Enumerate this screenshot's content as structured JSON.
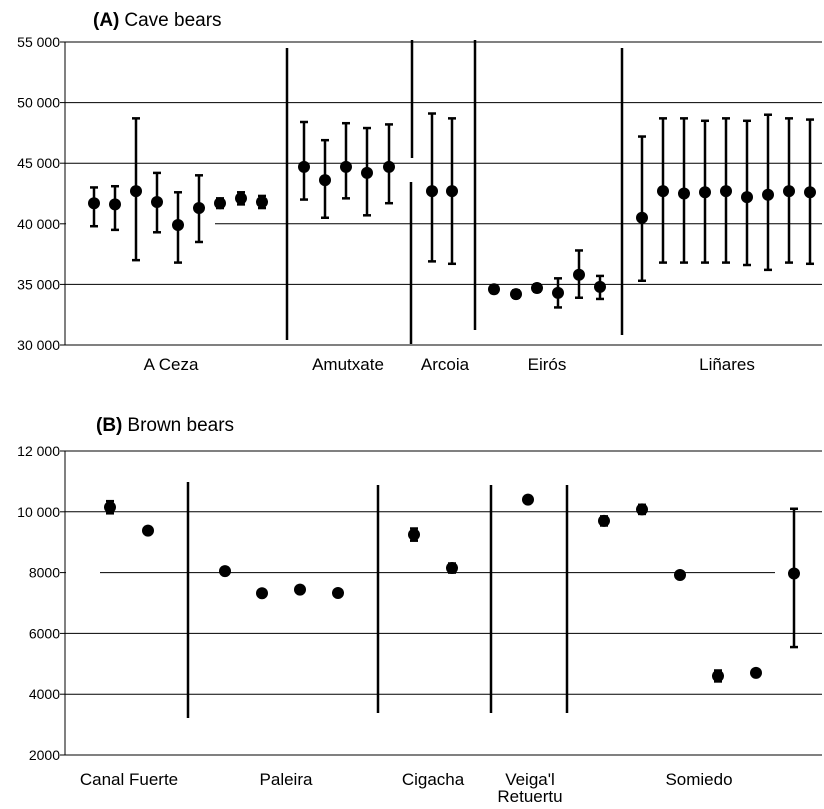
{
  "chart_data": [
    {
      "type": "scatter",
      "panel_label": "(A)",
      "title": "Cave bears",
      "ylim": [
        30000,
        55000
      ],
      "yticks": [
        30000,
        35000,
        40000,
        45000,
        50000,
        55000
      ],
      "ytick_labels": [
        "30 000",
        "35 000",
        "40 000",
        "45 000",
        "50 000",
        "55 000"
      ],
      "grid": true,
      "groups": [
        {
          "name": "A Ceza",
          "points": [
            {
              "y": 41700,
              "lo": 39800,
              "hi": 43000
            },
            {
              "y": 41600,
              "lo": 39500,
              "hi": 43100
            },
            {
              "y": 42700,
              "lo": 37000,
              "hi": 48700
            },
            {
              "y": 41800,
              "lo": 39300,
              "hi": 44200
            },
            {
              "y": 39900,
              "lo": 36800,
              "hi": 42600
            },
            {
              "y": 41300,
              "lo": 38500,
              "hi": 44000
            },
            {
              "y": 41700,
              "lo": 41300,
              "hi": 42100
            },
            {
              "y": 42100,
              "lo": 41600,
              "hi": 42600
            },
            {
              "y": 41800,
              "lo": 41300,
              "hi": 42300
            }
          ]
        },
        {
          "name": "Amutxate",
          "points": [
            {
              "y": 44700,
              "lo": 42000,
              "hi": 48400
            },
            {
              "y": 43600,
              "lo": 40500,
              "hi": 46900
            },
            {
              "y": 44700,
              "lo": 42100,
              "hi": 48300
            },
            {
              "y": 44200,
              "lo": 40700,
              "hi": 47900
            },
            {
              "y": 44700,
              "lo": 41700,
              "hi": 48200
            }
          ]
        },
        {
          "name": "Arcoia",
          "points": [
            {
              "y": 42700,
              "lo": 36900,
              "hi": 49100
            },
            {
              "y": 42700,
              "lo": 36700,
              "hi": 48700
            }
          ]
        },
        {
          "name": "Eirós",
          "points": [
            {
              "y": 34600,
              "lo": 34300,
              "hi": 34900
            },
            {
              "y": 34200,
              "lo": 33900,
              "hi": 34500
            },
            {
              "y": 34700,
              "lo": 34400,
              "hi": 35000
            },
            {
              "y": 34300,
              "lo": 33100,
              "hi": 35500
            },
            {
              "y": 35800,
              "lo": 33900,
              "hi": 37800
            },
            {
              "y": 34800,
              "lo": 33800,
              "hi": 35700
            }
          ]
        },
        {
          "name": "Liñares",
          "points": [
            {
              "y": 40500,
              "lo": 35300,
              "hi": 47200
            },
            {
              "y": 42700,
              "lo": 36800,
              "hi": 48700
            },
            {
              "y": 42500,
              "lo": 36800,
              "hi": 48700
            },
            {
              "y": 42600,
              "lo": 36800,
              "hi": 48500
            },
            {
              "y": 42700,
              "lo": 36800,
              "hi": 48700
            },
            {
              "y": 42200,
              "lo": 36600,
              "hi": 48500
            },
            {
              "y": 42400,
              "lo": 36200,
              "hi": 49000
            },
            {
              "y": 42700,
              "lo": 36800,
              "hi": 48700
            },
            {
              "y": 42600,
              "lo": 36700,
              "hi": 48600
            }
          ]
        }
      ]
    },
    {
      "type": "scatter",
      "panel_label": "(B)",
      "title": "Brown bears",
      "ylim": [
        2000,
        12000
      ],
      "yticks": [
        2000,
        4000,
        6000,
        8000,
        10000,
        12000
      ],
      "ytick_labels": [
        "2000",
        "4000",
        "6000",
        "8000",
        "10 000",
        "12 000"
      ],
      "grid": true,
      "groups": [
        {
          "name": "Canal Fuerte",
          "points": [
            {
              "y": 10150,
              "lo": 9950,
              "hi": 10350
            },
            {
              "y": 9380,
              "lo": 9330,
              "hi": 9430
            }
          ]
        },
        {
          "name": "Paleira",
          "points": [
            {
              "y": 8050,
              "lo": 8000,
              "hi": 8100
            },
            {
              "y": 7320,
              "lo": 7270,
              "hi": 7370
            },
            {
              "y": 7440,
              "lo": 7390,
              "hi": 7490
            },
            {
              "y": 7330,
              "lo": 7280,
              "hi": 7380
            }
          ]
        },
        {
          "name": "Cigacha",
          "points": [
            {
              "y": 9250,
              "lo": 9050,
              "hi": 9450
            },
            {
              "y": 8150,
              "lo": 8000,
              "hi": 8300
            }
          ]
        },
        {
          "name": "Veiga'l Retuertu",
          "points": [
            {
              "y": 10400,
              "lo": 10350,
              "hi": 10450
            }
          ]
        },
        {
          "name": "Somiedo",
          "points": [
            {
              "y": 9700,
              "lo": 9550,
              "hi": 9850
            },
            {
              "y": 10080,
              "lo": 9930,
              "hi": 10230
            },
            {
              "y": 7920,
              "lo": 7870,
              "hi": 7970
            },
            {
              "y": 4600,
              "lo": 4420,
              "hi": 4780
            },
            {
              "y": 4700,
              "lo": 4620,
              "hi": 4780
            },
            {
              "y": 7970,
              "lo": 5550,
              "hi": 10100
            }
          ]
        }
      ]
    }
  ]
}
